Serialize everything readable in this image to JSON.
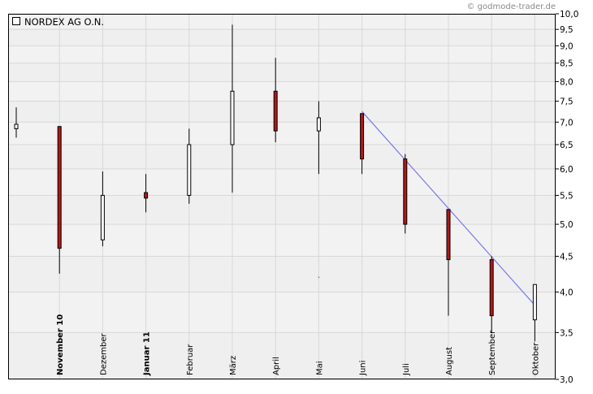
{
  "watermark": "© godmode-trader.de",
  "colors": {
    "background": "#efefef",
    "band_light": "#f2f2f2",
    "grid": "#d8d8d8",
    "wick": "#000000",
    "up_fill": "#ffffff",
    "down_fill": "#b01818",
    "trendline": "#7777ee",
    "text": "#000000",
    "watermark": "#8a8a8a"
  },
  "chart_data": {
    "type": "candlestick",
    "title": "NORDEX AG O.N.",
    "yscale": "log",
    "ylim": [
      3.0,
      10.0
    ],
    "yticks": [
      "10,0",
      "9,5",
      "9,0",
      "8,5",
      "8,0",
      "7,5",
      "7,0",
      "6,5",
      "6,0",
      "5,5",
      "5,0",
      "4,5",
      "4,0",
      "3,5",
      "3,0"
    ],
    "ytick_values": [
      10.0,
      9.5,
      9.0,
      8.5,
      8.0,
      7.5,
      7.0,
      6.5,
      6.0,
      5.5,
      5.0,
      4.5,
      4.0,
      3.5,
      3.0
    ],
    "categories": [
      "",
      "November 10",
      "Dezember",
      "Januar 11",
      "Februar",
      "März",
      "April",
      "Mai",
      "Juni",
      "Juli",
      "August",
      "September",
      "Oktober"
    ],
    "bold_labels": [
      "November 10",
      "Januar 11"
    ],
    "candles": [
      {
        "open": 6.85,
        "high": 7.35,
        "low": 6.65,
        "close": 6.95
      },
      {
        "open": 6.9,
        "high": 6.9,
        "low": 4.25,
        "close": 4.62
      },
      {
        "open": 4.75,
        "high": 5.95,
        "low": 4.65,
        "close": 5.5
      },
      {
        "open": 5.55,
        "high": 5.9,
        "low": 5.2,
        "close": 5.45
      },
      {
        "open": 5.5,
        "high": 6.85,
        "low": 5.35,
        "close": 6.5
      },
      {
        "open": 6.5,
        "high": 9.65,
        "low": 5.55,
        "close": 7.75
      },
      {
        "open": 7.75,
        "high": 8.65,
        "low": 6.55,
        "close": 6.8
      },
      {
        "open": 6.8,
        "high": 7.5,
        "low": 5.9,
        "close": 7.1
      },
      {
        "open": 7.2,
        "high": 7.2,
        "low": 5.9,
        "close": 6.2
      },
      {
        "open": 6.2,
        "high": 6.3,
        "low": 4.85,
        "close": 5.0
      },
      {
        "open": 5.25,
        "high": 5.25,
        "low": 3.7,
        "close": 4.45
      },
      {
        "open": 4.45,
        "high": 4.5,
        "low": 3.5,
        "close": 3.7
      },
      {
        "open": 3.65,
        "high": 4.1,
        "low": 3.4,
        "close": 4.1
      }
    ],
    "trendline": [
      {
        "x": "Juni",
        "y": 7.25
      },
      {
        "x": "Oktober",
        "y": 3.83
      }
    ],
    "stray_point": {
      "x": "Mai",
      "y": 4.2
    }
  }
}
